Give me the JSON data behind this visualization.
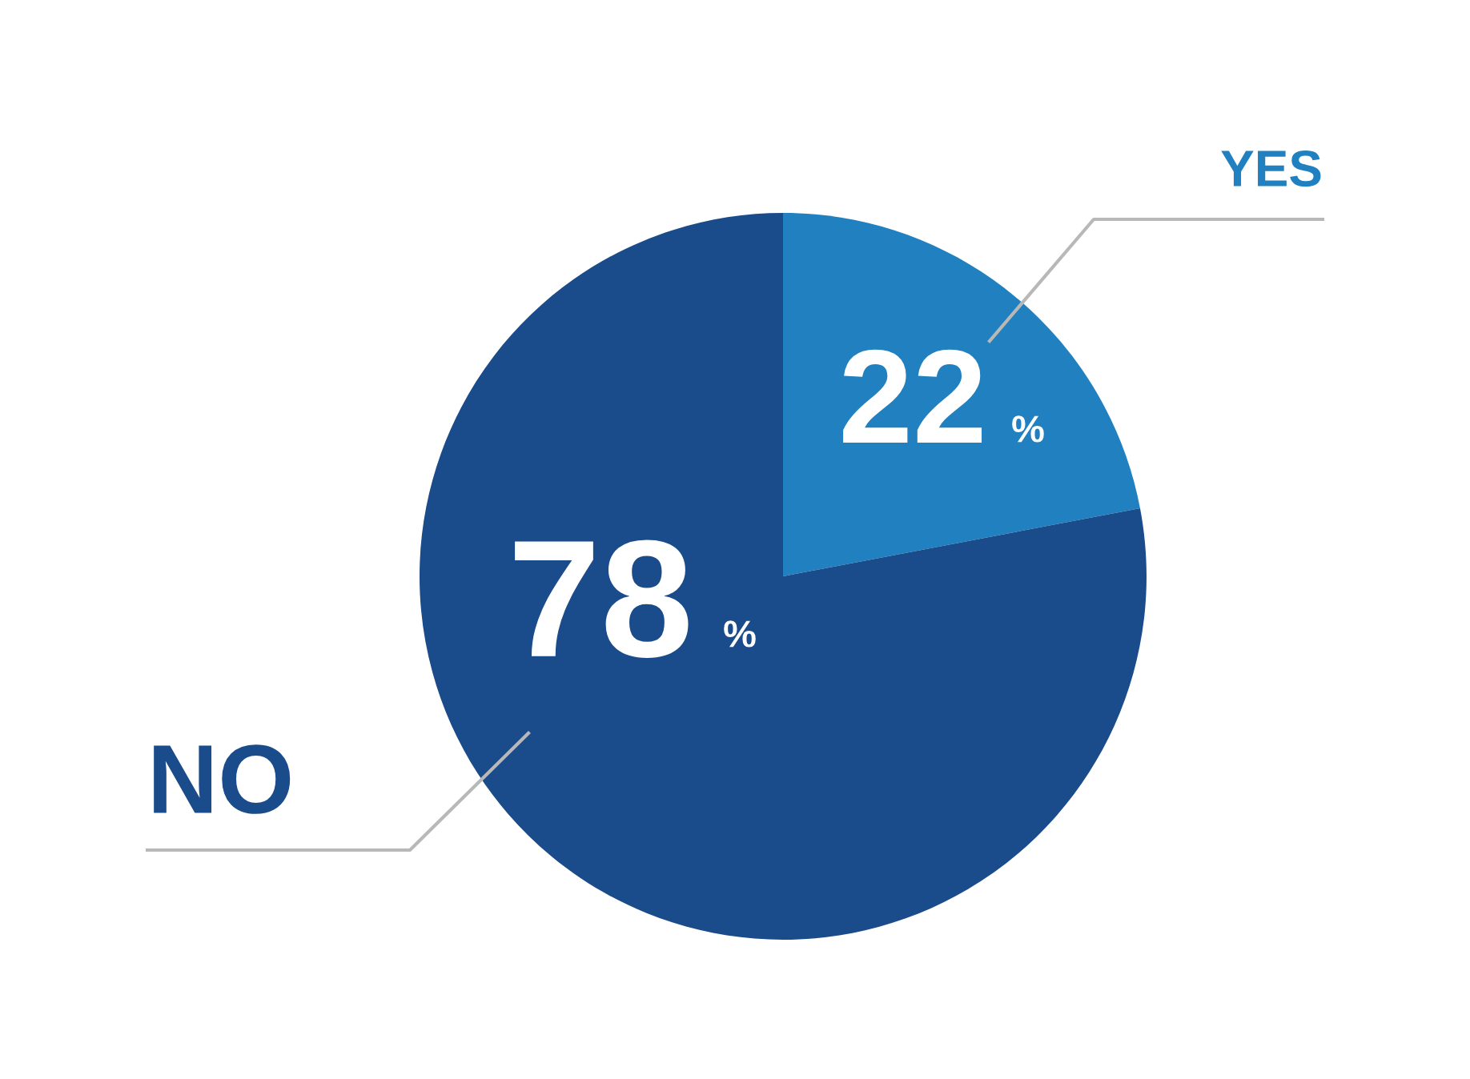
{
  "chart_data": {
    "type": "pie",
    "categories": [
      "YES",
      "NO"
    ],
    "values": [
      22,
      78
    ],
    "colors": [
      "#2181c0",
      "#1a4b8a"
    ],
    "value_labels": [
      "22 %",
      "78 %"
    ],
    "legend": false
  }
}
